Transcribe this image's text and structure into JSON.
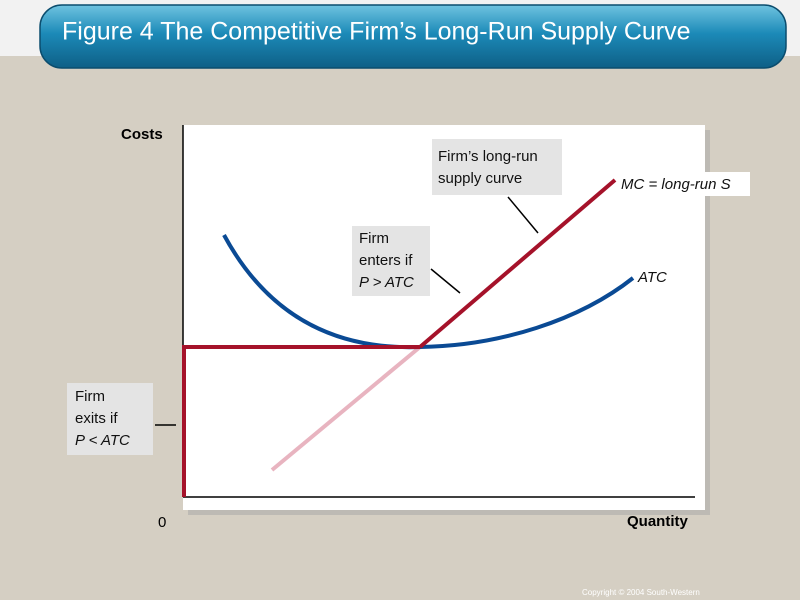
{
  "header": {
    "title": "Figure 4 The Competitive Firm’s Long-Run Supply Curve"
  },
  "diagram": {
    "y_axis_label": "Costs",
    "origin_label": "0",
    "x_axis_label": "Quantity",
    "supply_note": [
      "Firm’s long-run",
      "supply curve"
    ],
    "mc_label": "MC = long-run S",
    "atc_label": "ATC",
    "enter_note": [
      "Firm",
      "enters if",
      "P > ATC"
    ],
    "exit_note": [
      "Firm",
      "exits if",
      "P < ATC"
    ]
  },
  "footer": {
    "copyright": "Copyright © 2004  South-Western"
  }
}
